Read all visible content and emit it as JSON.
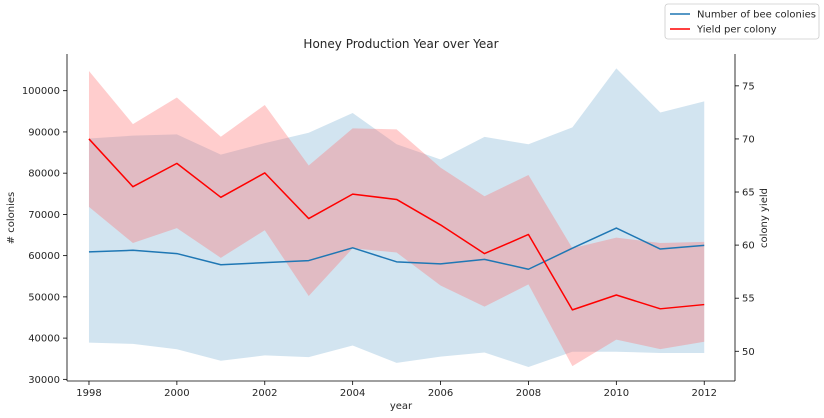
{
  "chart_data": {
    "type": "line",
    "title": "Honey Production Year over Year",
    "xlabel": "year",
    "ylabel_left": "# colonies",
    "ylabel_right": "colony yield",
    "x": [
      1998,
      1999,
      2000,
      2001,
      2002,
      2003,
      2004,
      2005,
      2006,
      2007,
      2008,
      2009,
      2010,
      2011,
      2012
    ],
    "x_ticks": [
      "1998",
      "2000",
      "2002",
      "2004",
      "2006",
      "2008",
      "2010",
      "2012"
    ],
    "xlim": [
      1997.5,
      2012.7
    ],
    "left_axis": {
      "ylim": [
        29600,
        108900
      ],
      "ticks": [
        30000,
        40000,
        50000,
        60000,
        70000,
        80000,
        90000,
        100000
      ],
      "tick_labels": [
        "30000",
        "40000",
        "50000",
        "60000",
        "70000",
        "80000",
        "90000",
        "100000"
      ]
    },
    "right_axis": {
      "ylim": [
        47.2,
        78.0
      ],
      "ticks": [
        50,
        55,
        60,
        65,
        70,
        75
      ],
      "tick_labels": [
        "50",
        "55",
        "60",
        "65",
        "70",
        "75"
      ]
    },
    "series": [
      {
        "name": "Number of bee colonies",
        "axis": "left",
        "color": "#1f77b4",
        "band_color": "#1f77b4",
        "values": [
          60900,
          61300,
          60500,
          57800,
          58300,
          58800,
          61900,
          58500,
          58000,
          59100,
          56700,
          61800,
          66700,
          61600,
          62500
        ],
        "band_low": [
          38900,
          38600,
          37300,
          34500,
          35800,
          35400,
          38200,
          34000,
          35500,
          36500,
          33000,
          36700,
          36700,
          36400,
          36400
        ],
        "band_high": [
          88400,
          89100,
          89400,
          84500,
          87300,
          89800,
          94600,
          87000,
          83300,
          88800,
          87000,
          91100,
          105400,
          94700,
          97400
        ]
      },
      {
        "name": "Yield per colony",
        "axis": "right",
        "color": "#ff0000",
        "band_color": "#ff6f6f",
        "values": [
          70.0,
          65.5,
          67.7,
          64.5,
          66.8,
          62.5,
          64.8,
          64.3,
          61.9,
          59.2,
          61.0,
          53.9,
          55.3,
          54.0,
          54.4
        ],
        "band_low": [
          63.6,
          60.2,
          61.6,
          58.8,
          61.4,
          55.2,
          59.7,
          59.3,
          56.2,
          54.2,
          56.3,
          48.6,
          51.1,
          50.2,
          50.9
        ],
        "band_high": [
          76.4,
          71.4,
          73.9,
          70.2,
          73.2,
          67.5,
          71.0,
          70.9,
          67.3,
          64.6,
          66.6,
          59.7,
          60.7,
          60.2,
          60.3
        ]
      }
    ],
    "legend_position": "top-right",
    "grid": false
  }
}
